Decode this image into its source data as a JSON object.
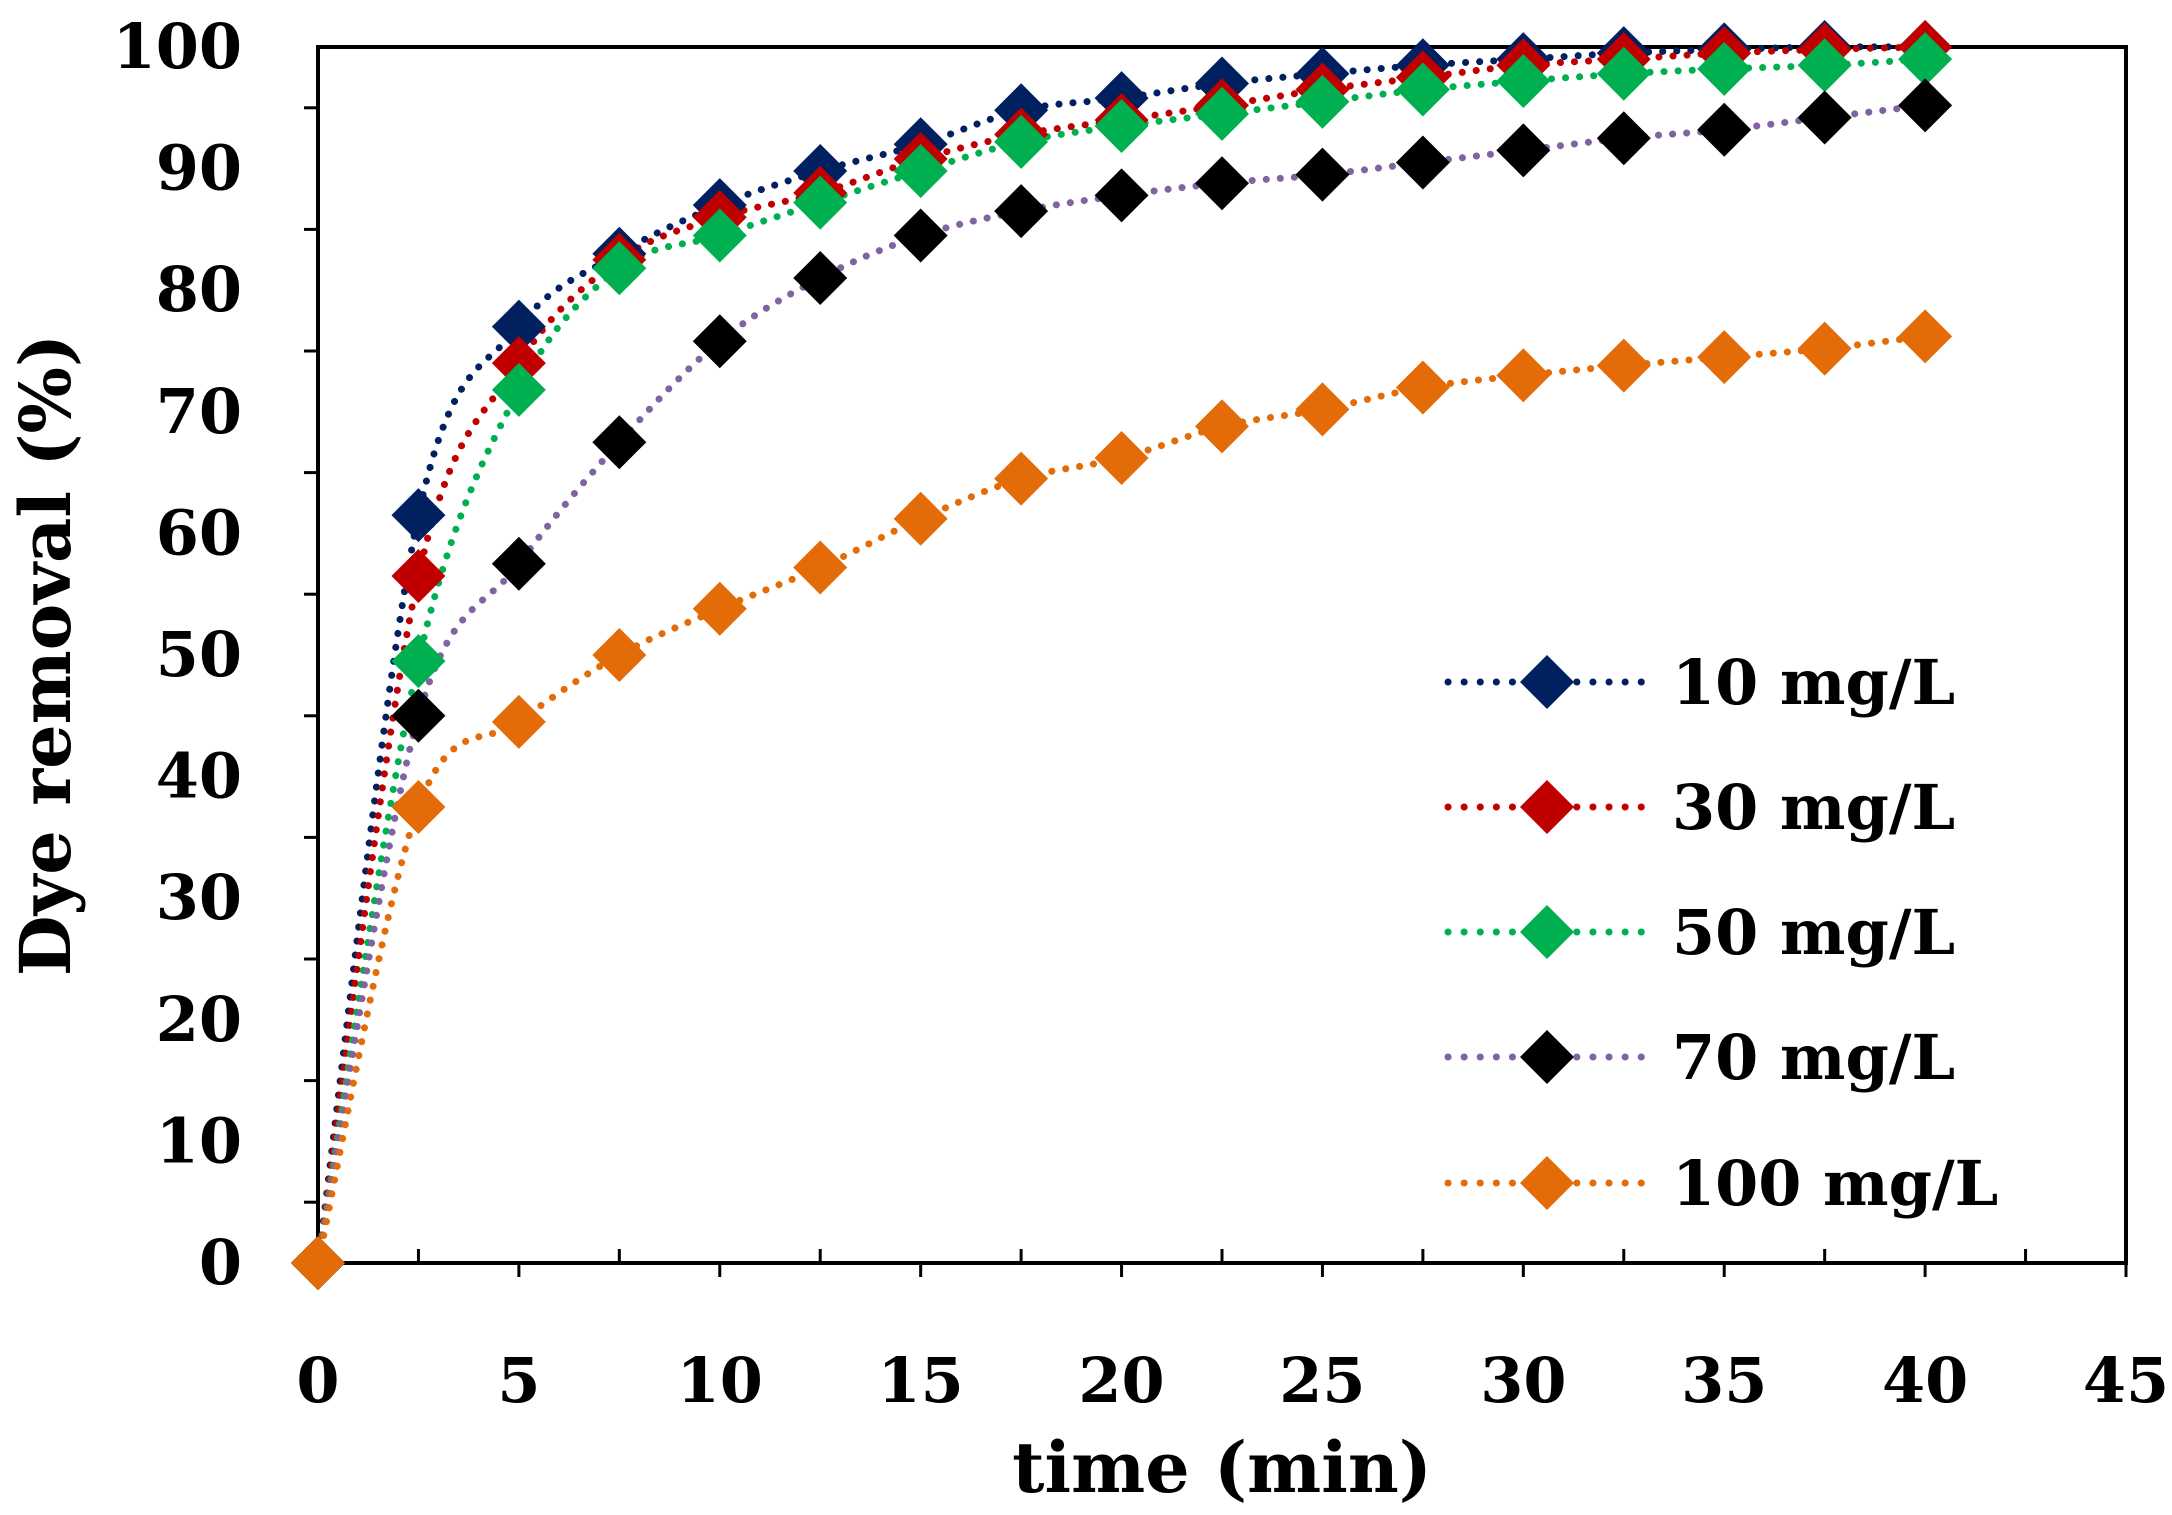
{
  "chart_data": {
    "type": "scatter",
    "xlabel": "time (min)",
    "ylabel": "Dye removal (%)",
    "xlim": [
      0,
      45
    ],
    "ylim": [
      0,
      100
    ],
    "xticks": [
      "0",
      "5",
      "10",
      "15",
      "20",
      "25",
      "30",
      "35",
      "40",
      "45"
    ],
    "yticks": [
      "0",
      "10",
      "20",
      "30",
      "40",
      "50",
      "60",
      "70",
      "80",
      "90",
      "100"
    ],
    "grid": false,
    "legend_position": "bottom-right",
    "x": [
      0,
      2.5,
      5,
      7.5,
      10,
      12.5,
      15,
      17.5,
      20,
      22.5,
      25,
      27.5,
      30,
      32.5,
      35,
      37.5,
      40
    ],
    "series": [
      {
        "name": "10 mg/L",
        "color": "#002060",
        "line_color": "#002060",
        "values": [
          0,
          61.5,
          77.0,
          83.0,
          87.0,
          89.8,
          92.0,
          94.8,
          95.8,
          97.0,
          97.8,
          98.5,
          99.0,
          99.5,
          99.8,
          100.0,
          100.0
        ]
      },
      {
        "name": "30 mg/L",
        "color": "#C00000",
        "line_color": "#C00000",
        "values": [
          0,
          56.5,
          74.0,
          82.5,
          86.0,
          88.0,
          90.8,
          92.8,
          94.0,
          95.2,
          96.5,
          97.5,
          98.5,
          99.0,
          99.5,
          99.8,
          100.0
        ]
      },
      {
        "name": "50 mg/L",
        "color": "#00B050",
        "line_color": "#00B050",
        "values": [
          0,
          49.5,
          71.8,
          81.8,
          84.5,
          87.2,
          89.8,
          92.2,
          93.5,
          94.5,
          95.5,
          96.5,
          97.2,
          97.8,
          98.2,
          98.5,
          99.0
        ]
      },
      {
        "name": "70 mg/L",
        "color": "#000000",
        "line_color": "#8064A2",
        "values": [
          0,
          45.0,
          57.5,
          67.5,
          75.8,
          81.0,
          84.5,
          86.5,
          87.8,
          88.8,
          89.5,
          90.5,
          91.5,
          92.5,
          93.2,
          94.2,
          95.2
        ]
      },
      {
        "name": "100 mg/L",
        "color": "#E36C09",
        "line_color": "#E36C09",
        "values": [
          0,
          37.5,
          44.5,
          50.0,
          53.8,
          57.2,
          61.2,
          64.5,
          66.2,
          68.8,
          70.2,
          72.0,
          73.0,
          73.8,
          74.5,
          75.2,
          76.2
        ]
      }
    ]
  }
}
